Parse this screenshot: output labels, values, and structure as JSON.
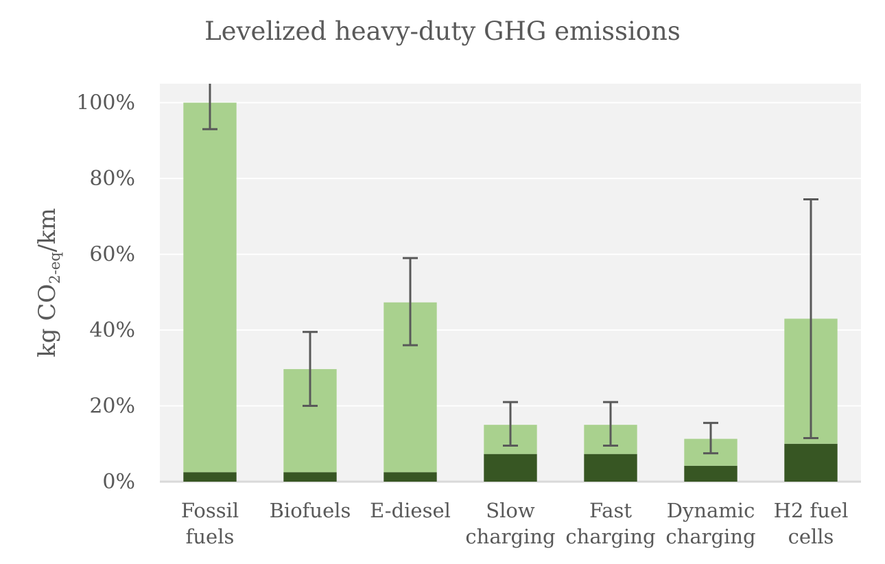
{
  "chart_data": {
    "type": "bar",
    "stacked": true,
    "title": "Levelized heavy-duty GHG emissions",
    "xlabel": "",
    "ylabel": {
      "main": "kg CO",
      "subscript": "2-eq",
      "suffix": "/km"
    },
    "ylim": [
      0,
      105
    ],
    "yticks": [
      0,
      20,
      40,
      60,
      80,
      100
    ],
    "ytick_labels": [
      "0%",
      "20%",
      "40%",
      "60%",
      "80%",
      "100%"
    ],
    "grid": true,
    "categories": [
      [
        "Fossil",
        "fuels"
      ],
      [
        "Biofuels"
      ],
      [
        "E-diesel"
      ],
      [
        "Slow",
        "charging"
      ],
      [
        "Fast",
        "charging"
      ],
      [
        "Dynamic",
        "charging"
      ],
      [
        "H2 fuel",
        "cells"
      ]
    ],
    "series": [
      {
        "values": [
          2.5,
          2.5,
          2.5,
          7.3,
          7.3,
          4.2,
          10.0
        ],
        "color": "#375623"
      },
      {
        "values": [
          97.5,
          27.2,
          44.8,
          7.7,
          7.7,
          7.1,
          33.0
        ],
        "color": "#a9d18e"
      }
    ],
    "error_bars": [
      {
        "low": 93,
        "high": 105
      },
      {
        "low": 20,
        "high": 39.5
      },
      {
        "low": 36,
        "high": 59
      },
      {
        "low": 9.5,
        "high": 21
      },
      {
        "low": 9.5,
        "high": 21
      },
      {
        "low": 7.5,
        "high": 15.5
      },
      {
        "low": 11.5,
        "high": 74.5
      }
    ],
    "colors": {
      "plot_background": "#f2f2f2",
      "gridline": "#ffffff",
      "axis_line": "#d9d9d9",
      "error_bar": "#595959",
      "text": "#595959"
    }
  }
}
